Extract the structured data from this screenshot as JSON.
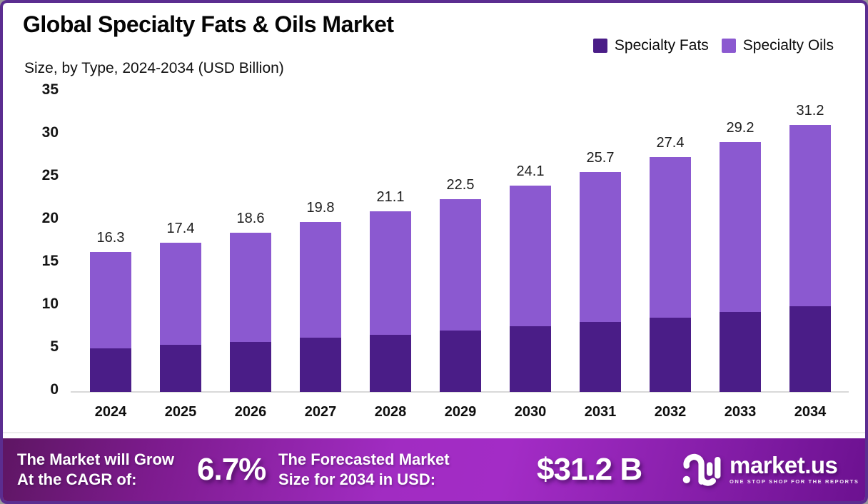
{
  "header": {
    "title": "Global Specialty Fats & Oils Market",
    "subtitle": "Size, by Type, 2024-2034 (USD Billion)"
  },
  "legend": {
    "items": [
      {
        "label": "Specialty Fats",
        "color": "#4a1d87"
      },
      {
        "label": "Specialty Oils",
        "color": "#8b59d0"
      }
    ]
  },
  "chart_data": {
    "type": "bar",
    "stacked": true,
    "title": "Global Specialty Fats & Oils Market",
    "subtitle": "Size, by Type, 2024-2034 (USD Billion)",
    "xlabel": "",
    "ylabel": "USD Billion",
    "categories": [
      "2024",
      "2025",
      "2026",
      "2027",
      "2028",
      "2029",
      "2030",
      "2031",
      "2032",
      "2033",
      "2034"
    ],
    "series": [
      {
        "name": "Specialty Fats",
        "color": "#4a1d87",
        "values": [
          5.1,
          5.5,
          5.8,
          6.3,
          6.7,
          7.2,
          7.7,
          8.2,
          8.7,
          9.3,
          10.0
        ]
      },
      {
        "name": "Specialty Oils",
        "color": "#8b59d0",
        "values": [
          11.2,
          11.9,
          12.8,
          13.5,
          14.4,
          15.3,
          16.4,
          17.5,
          18.7,
          19.9,
          21.2
        ]
      }
    ],
    "totals": [
      16.3,
      17.4,
      18.6,
      19.8,
      21.1,
      22.5,
      24.1,
      25.7,
      27.4,
      29.2,
      31.2
    ],
    "total_labels": [
      "16.3",
      "17.4",
      "18.6",
      "19.8",
      "21.1",
      "22.5",
      "24.1",
      "25.7",
      "27.4",
      "29.2",
      "31.2"
    ],
    "yticks": [
      0,
      5,
      10,
      15,
      20,
      25,
      30,
      35
    ],
    "ylim": [
      0,
      35
    ],
    "grid": false,
    "legend_position": "top-right"
  },
  "footer": {
    "cagr_label_line1": "The Market will Grow",
    "cagr_label_line2": "At the CAGR of:",
    "cagr_value": "6.7%",
    "forecast_label_line1": "The Forecasted Market",
    "forecast_label_line2": "Size for 2034 in USD:",
    "forecast_value": "$31.2 B",
    "brand": "market.us",
    "brand_tagline": "ONE STOP SHOP FOR THE REPORTS"
  },
  "colors": {
    "specialty_fats": "#4a1d87",
    "specialty_oils": "#8b59d0",
    "border": "#5b2d90",
    "axis_line": "#d9d9d9",
    "footer_gradient_mid": "#a32cc6"
  }
}
